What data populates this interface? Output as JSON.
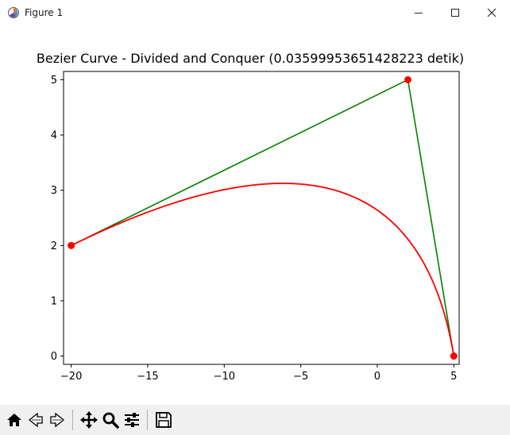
{
  "window": {
    "title": "Figure 1",
    "controls": [
      "minimize",
      "maximize",
      "close"
    ]
  },
  "toolbar": {
    "tools": [
      "home-icon",
      "back-icon",
      "forward-icon",
      "pan-icon",
      "zoom-icon",
      "configure-subplots-icon",
      "save-icon"
    ]
  },
  "chart_data": {
    "type": "line",
    "title": "Bezier Curve - Divided and Conquer (0.03599953651428223 detik)",
    "xlabel": "",
    "ylabel": "",
    "xlim": [
      -20.5,
      5.35
    ],
    "ylim": [
      -0.15,
      5.15
    ],
    "xticks": [
      -20,
      -15,
      -10,
      -5,
      0,
      5
    ],
    "yticks": [
      0,
      1,
      2,
      3,
      4,
      5
    ],
    "grid": false,
    "series": [
      {
        "kind": "control-polygon",
        "color": "#008000",
        "x": [
          -20,
          2,
          5
        ],
        "y": [
          2,
          5,
          0
        ]
      },
      {
        "kind": "control-points",
        "color": "#ff0000",
        "x": [
          -20,
          2,
          5
        ],
        "y": [
          2,
          5,
          0
        ]
      },
      {
        "kind": "bezier-curve",
        "color": "#ff0000",
        "x": [
          -20,
          5
        ],
        "y": [
          2,
          0
        ]
      }
    ]
  }
}
